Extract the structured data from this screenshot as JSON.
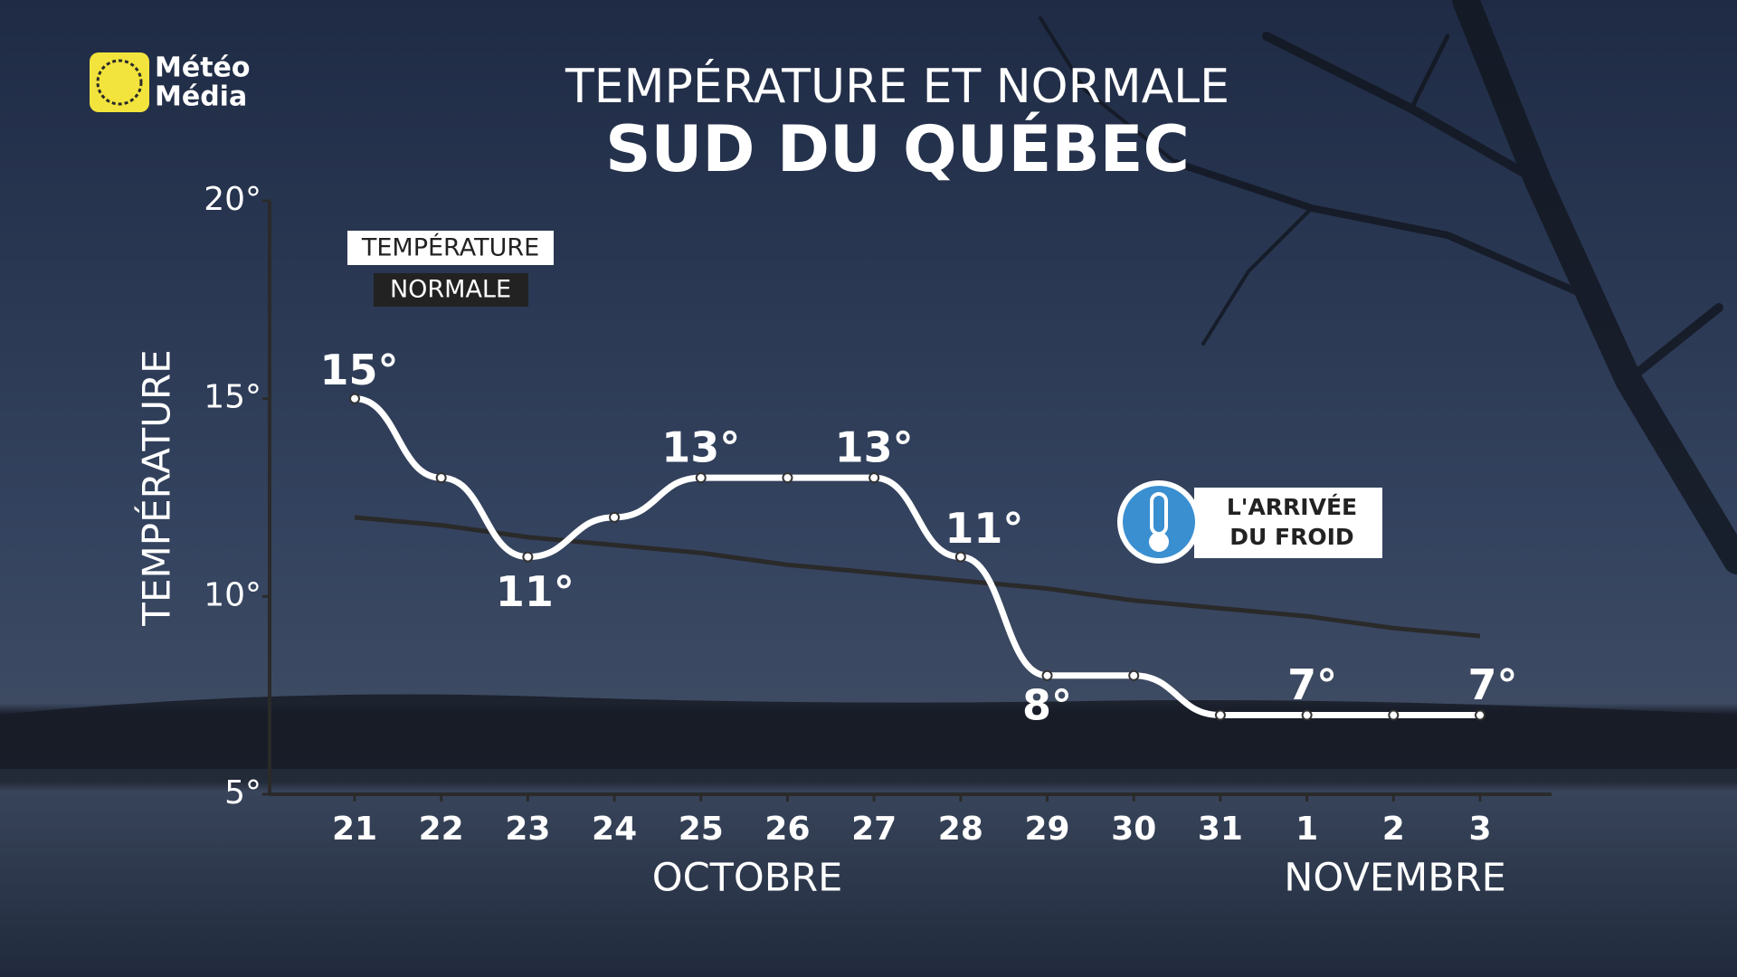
{
  "logo": [
    "Météo",
    "Média"
  ],
  "chart_data": {
    "type": "line",
    "title": "TEMPÉRATURE ET NORMALE",
    "subtitle": "SUD DU QUÉBEC",
    "ylabel": "TEMPÉRATURE",
    "categories": [
      "21",
      "22",
      "23",
      "24",
      "25",
      "26",
      "27",
      "28",
      "29",
      "30",
      "31",
      "1",
      "2",
      "3"
    ],
    "x_group_labels": [
      "OCTOBRE",
      "NOVEMBRE"
    ],
    "ylim": [
      5,
      20
    ],
    "yticks": [
      {
        "value": 5,
        "label": "5°"
      },
      {
        "value": 10,
        "label": "10°"
      },
      {
        "value": 15,
        "label": "15°"
      },
      {
        "value": 20,
        "label": "20°"
      }
    ],
    "series": [
      {
        "name": "TEMPÉRATURE",
        "color": "#ffffff",
        "values": [
          15,
          13,
          11,
          12,
          13,
          13,
          13,
          11,
          8,
          8,
          7,
          7,
          7,
          7
        ],
        "value_labels": [
          "15°",
          null,
          "11°",
          null,
          "13°",
          null,
          "13°",
          "11°",
          "8°",
          null,
          null,
          "7°",
          null,
          "7°"
        ]
      },
      {
        "name": "NORMALE",
        "color": "#2a2a2a",
        "values": [
          12.0,
          11.8,
          11.5,
          11.3,
          11.1,
          10.8,
          10.6,
          10.4,
          10.2,
          9.9,
          9.7,
          9.5,
          9.2,
          9.0
        ]
      }
    ],
    "annotation": [
      "L'ARRIVÉE",
      "DU FROID"
    ]
  }
}
